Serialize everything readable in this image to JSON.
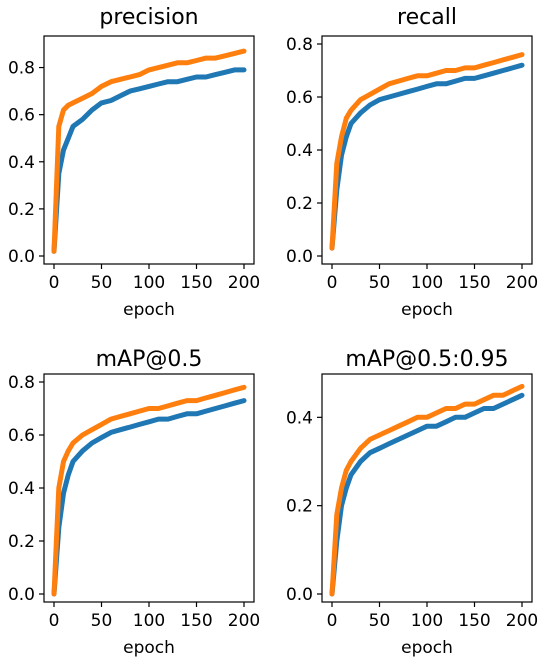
{
  "colors": {
    "series_blue": "#1f77b4",
    "series_orange": "#ff7f0e"
  },
  "chart_data": [
    {
      "type": "line",
      "title": "precision",
      "xlabel": "epoch",
      "ylabel": "",
      "xlim": [
        0,
        200
      ],
      "ylim": [
        0,
        0.9
      ],
      "xticks": [
        0,
        50,
        100,
        150,
        200
      ],
      "yticks": [
        0.0,
        0.2,
        0.4,
        0.6,
        0.8
      ],
      "x": [
        0,
        5,
        10,
        15,
        20,
        30,
        40,
        50,
        60,
        70,
        80,
        90,
        100,
        110,
        120,
        130,
        140,
        150,
        160,
        170,
        180,
        190,
        200
      ],
      "series": [
        {
          "values": [
            0.02,
            0.35,
            0.45,
            0.5,
            0.55,
            0.58,
            0.62,
            0.65,
            0.66,
            0.68,
            0.7,
            0.71,
            0.72,
            0.73,
            0.74,
            0.74,
            0.75,
            0.76,
            0.76,
            0.77,
            0.78,
            0.79,
            0.79
          ]
        },
        {
          "values": [
            0.02,
            0.55,
            0.62,
            0.64,
            0.65,
            0.67,
            0.69,
            0.72,
            0.74,
            0.75,
            0.76,
            0.77,
            0.79,
            0.8,
            0.81,
            0.82,
            0.82,
            0.83,
            0.84,
            0.84,
            0.85,
            0.86,
            0.87
          ]
        }
      ]
    },
    {
      "type": "line",
      "title": "recall",
      "xlabel": "epoch",
      "ylabel": "",
      "xlim": [
        0,
        200
      ],
      "ylim": [
        0,
        0.8
      ],
      "xticks": [
        0,
        50,
        100,
        150,
        200
      ],
      "yticks": [
        0.0,
        0.2,
        0.4,
        0.6,
        0.8
      ],
      "x": [
        0,
        5,
        10,
        15,
        20,
        30,
        40,
        50,
        60,
        70,
        80,
        90,
        100,
        110,
        120,
        130,
        140,
        150,
        160,
        170,
        180,
        190,
        200
      ],
      "series": [
        {
          "values": [
            0.03,
            0.25,
            0.38,
            0.45,
            0.5,
            0.54,
            0.57,
            0.59,
            0.6,
            0.61,
            0.62,
            0.63,
            0.64,
            0.65,
            0.65,
            0.66,
            0.67,
            0.67,
            0.68,
            0.69,
            0.7,
            0.71,
            0.72
          ]
        },
        {
          "values": [
            0.03,
            0.35,
            0.45,
            0.52,
            0.55,
            0.59,
            0.61,
            0.63,
            0.65,
            0.66,
            0.67,
            0.68,
            0.68,
            0.69,
            0.7,
            0.7,
            0.71,
            0.71,
            0.72,
            0.73,
            0.74,
            0.75,
            0.76
          ]
        }
      ]
    },
    {
      "type": "line",
      "title": "mAP@0.5",
      "xlabel": "epoch",
      "ylabel": "",
      "xlim": [
        0,
        200
      ],
      "ylim": [
        0,
        0.8
      ],
      "xticks": [
        0,
        50,
        100,
        150,
        200
      ],
      "yticks": [
        0.0,
        0.2,
        0.4,
        0.6,
        0.8
      ],
      "x": [
        0,
        5,
        10,
        15,
        20,
        30,
        40,
        50,
        60,
        70,
        80,
        90,
        100,
        110,
        120,
        130,
        140,
        150,
        160,
        170,
        180,
        190,
        200
      ],
      "series": [
        {
          "values": [
            0.0,
            0.25,
            0.38,
            0.45,
            0.5,
            0.54,
            0.57,
            0.59,
            0.61,
            0.62,
            0.63,
            0.64,
            0.65,
            0.66,
            0.66,
            0.67,
            0.68,
            0.68,
            0.69,
            0.7,
            0.71,
            0.72,
            0.73
          ]
        },
        {
          "values": [
            0.0,
            0.4,
            0.5,
            0.54,
            0.57,
            0.6,
            0.62,
            0.64,
            0.66,
            0.67,
            0.68,
            0.69,
            0.7,
            0.7,
            0.71,
            0.72,
            0.73,
            0.73,
            0.74,
            0.75,
            0.76,
            0.77,
            0.78
          ]
        }
      ]
    },
    {
      "type": "line",
      "title": "mAP@0.5:0.95",
      "xlabel": "epoch",
      "ylabel": "",
      "xlim": [
        0,
        200
      ],
      "ylim": [
        0,
        0.48
      ],
      "xticks": [
        0,
        50,
        100,
        150,
        200
      ],
      "yticks": [
        0.0,
        0.2,
        0.4
      ],
      "x": [
        0,
        5,
        10,
        15,
        20,
        30,
        40,
        50,
        60,
        70,
        80,
        90,
        100,
        110,
        120,
        130,
        140,
        150,
        160,
        170,
        180,
        190,
        200
      ],
      "series": [
        {
          "values": [
            0.0,
            0.12,
            0.2,
            0.24,
            0.27,
            0.3,
            0.32,
            0.33,
            0.34,
            0.35,
            0.36,
            0.37,
            0.38,
            0.38,
            0.39,
            0.4,
            0.4,
            0.41,
            0.42,
            0.42,
            0.43,
            0.44,
            0.45
          ]
        },
        {
          "values": [
            0.0,
            0.18,
            0.24,
            0.28,
            0.3,
            0.33,
            0.35,
            0.36,
            0.37,
            0.38,
            0.39,
            0.4,
            0.4,
            0.41,
            0.42,
            0.42,
            0.43,
            0.43,
            0.44,
            0.45,
            0.45,
            0.46,
            0.47
          ]
        }
      ]
    }
  ]
}
